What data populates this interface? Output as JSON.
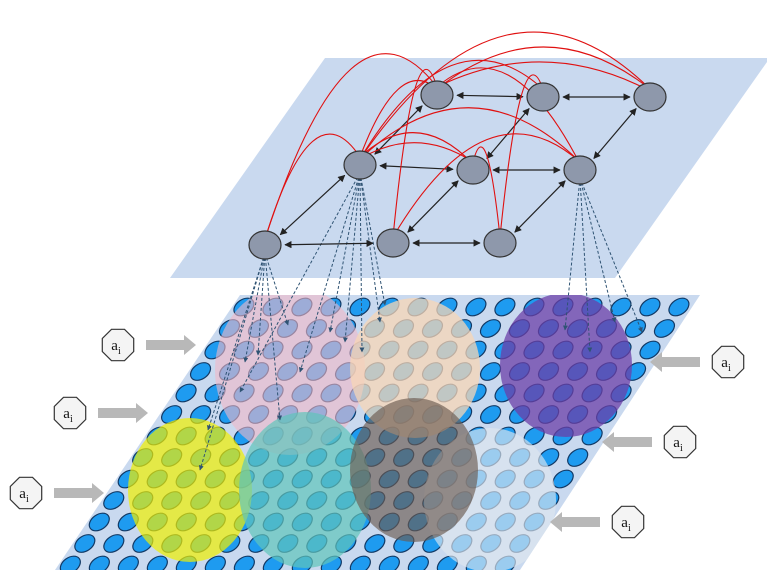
{
  "labels": [
    {
      "base": "a",
      "sub": "i"
    },
    {
      "base": "a",
      "sub": "i"
    },
    {
      "base": "a",
      "sub": "i"
    },
    {
      "base": "a",
      "sub": "i"
    },
    {
      "base": "a",
      "sub": "i"
    },
    {
      "base": "a",
      "sub": "i"
    }
  ]
}
